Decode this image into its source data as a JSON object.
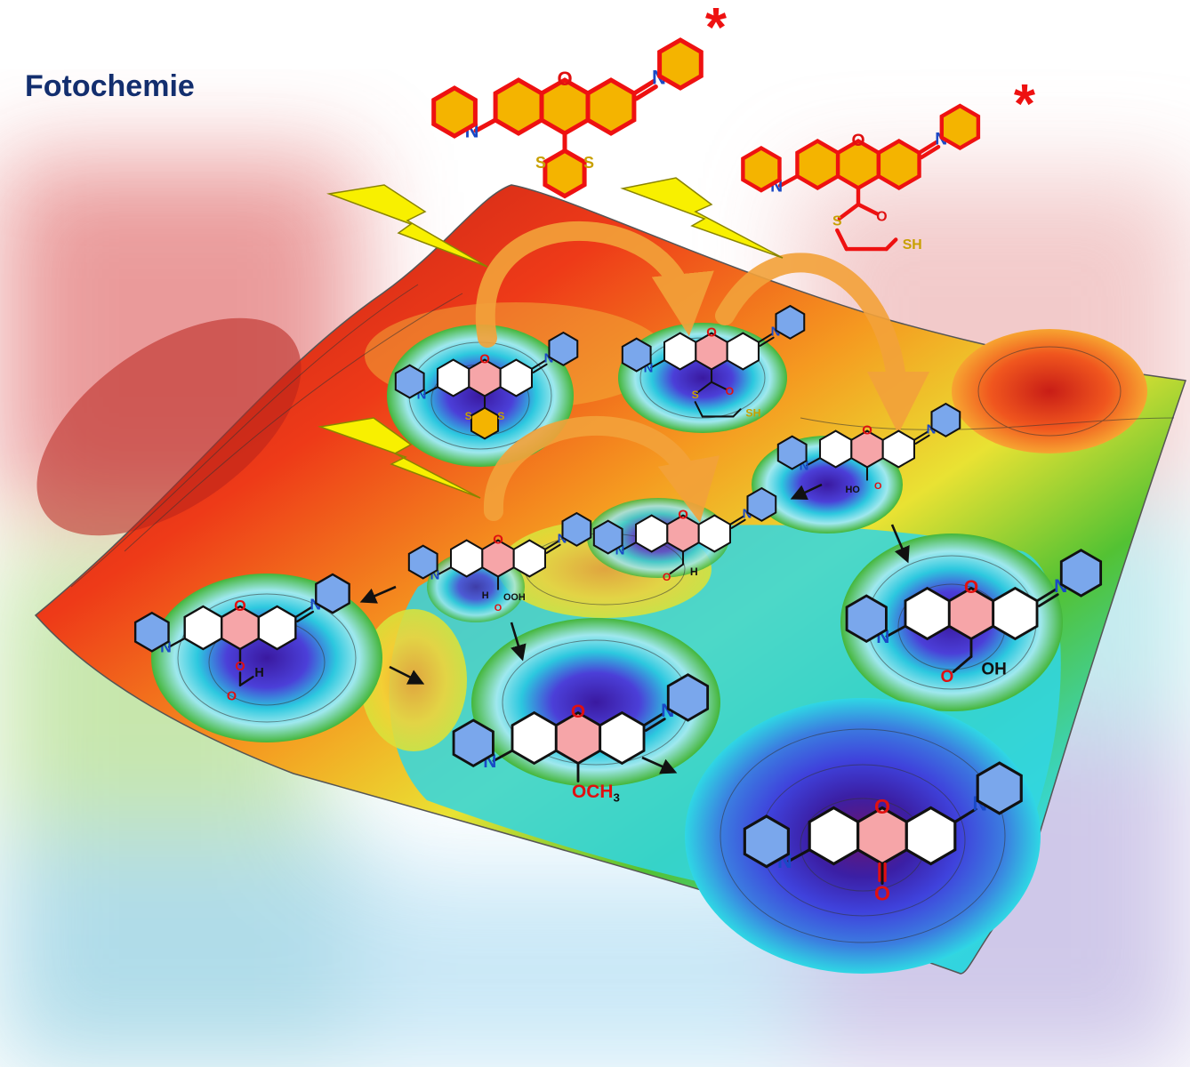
{
  "title": "Fotochemie",
  "colors": {
    "title": "#132e6e",
    "excited_ring": "#f4b400",
    "excited_bond": "#ee1111",
    "ring_blue": "#7aa7ec",
    "ring_pink": "#f6a5a8",
    "arrow_orange": "#f3a23a",
    "bolt": "#f8f000",
    "asterisk": "#ee1111"
  },
  "labels": {
    "asterisk": "*",
    "n": "N",
    "n_plus": "N",
    "plus": "+",
    "o": "O",
    "s": "S",
    "sh": "SH",
    "h": "H",
    "oh": "OH",
    "ooh": "OOH",
    "ho": "HO",
    "och": "OCH",
    "sub3": "3"
  },
  "icons": [
    "lightning-bolt-icon",
    "curved-arrow-icon",
    "reaction-arrow-icon",
    "asterisk-icon"
  ]
}
